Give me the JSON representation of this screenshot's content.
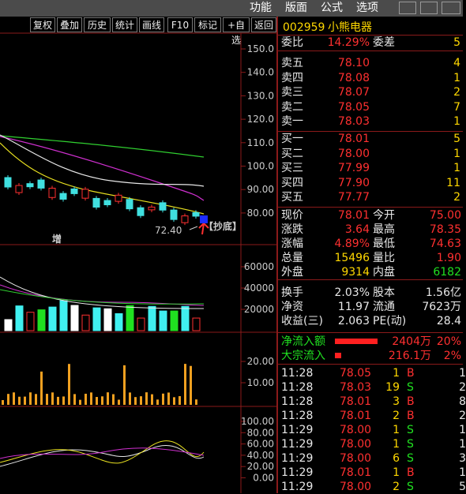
{
  "menu": [
    "功能",
    "版面",
    "公式",
    "选项"
  ],
  "toolbar": [
    "复权",
    "叠加",
    "历史",
    "统计",
    "画线",
    "F10",
    "标记",
    "+自选",
    "返回"
  ],
  "quote": {
    "code": "002959",
    "name": "小熊电器",
    "order_ratio": [
      "委比",
      "14.29%",
      "委差",
      "5"
    ],
    "asks": [
      [
        "卖五",
        "78.10",
        "4"
      ],
      [
        "卖四",
        "78.08",
        "1"
      ],
      [
        "卖三",
        "78.07",
        "2"
      ],
      [
        "卖二",
        "78.05",
        "7"
      ],
      [
        "卖一",
        "78.03",
        "1"
      ]
    ],
    "bids": [
      [
        "买一",
        "78.01",
        "5"
      ],
      [
        "买二",
        "78.00",
        "1"
      ],
      [
        "买三",
        "77.99",
        "1"
      ],
      [
        "买四",
        "77.90",
        "11"
      ],
      [
        "买五",
        "77.77",
        "2"
      ]
    ],
    "stats": [
      [
        "现价",
        "78.01",
        "今开",
        "75.00"
      ],
      [
        "涨跌",
        "3.64",
        "最高",
        "78.35"
      ],
      [
        "涨幅",
        "4.89%",
        "最低",
        "74.63"
      ],
      [
        "总量",
        "15496",
        "量比",
        "1.90"
      ],
      [
        "外盘",
        "9314",
        "内盘",
        "6182"
      ]
    ],
    "finance": [
      [
        "换手",
        "2.03%",
        "股本",
        "1.56亿"
      ],
      [
        "净资",
        "11.97",
        "流通",
        "7623万"
      ],
      [
        "收益(三)",
        "2.063",
        "PE(动)",
        "28.4"
      ]
    ],
    "flows": [
      [
        "净流入额",
        "2404万",
        "20%"
      ],
      [
        "大宗流入",
        "216.1万",
        "2%"
      ]
    ]
  },
  "trades": [
    [
      "11:28",
      "78.05",
      "1",
      "B",
      "1"
    ],
    [
      "11:28",
      "78.03",
      "19",
      "S",
      "2"
    ],
    [
      "11:28",
      "78.01",
      "3",
      "B",
      "8"
    ],
    [
      "11:28",
      "78.01",
      "2",
      "B",
      "2"
    ],
    [
      "11:29",
      "78.00",
      "1",
      "S",
      "1"
    ],
    [
      "11:29",
      "78.00",
      "1",
      "S",
      "1"
    ],
    [
      "11:29",
      "78.00",
      "6",
      "S",
      "3"
    ],
    [
      "11:29",
      "78.01",
      "1",
      "B",
      "1"
    ],
    [
      "11:29",
      "78.00",
      "2",
      "S",
      "5"
    ]
  ],
  "chart": {
    "price_axis": [
      "150.0",
      "140.0",
      "130.0",
      "120.0",
      "110.0",
      "100.0",
      "90.00",
      "80.00"
    ],
    "volume_axis": [
      "60000",
      "40000",
      "20000"
    ],
    "indicator1_axis": [
      "20.00",
      "10.00"
    ],
    "indicator2_axis": [
      "100.00",
      "80.00",
      "60.00",
      "40.00",
      "20.00",
      "0.00"
    ],
    "low_price": "72.40",
    "signal": "【抄底】",
    "marker": "增"
  }
}
